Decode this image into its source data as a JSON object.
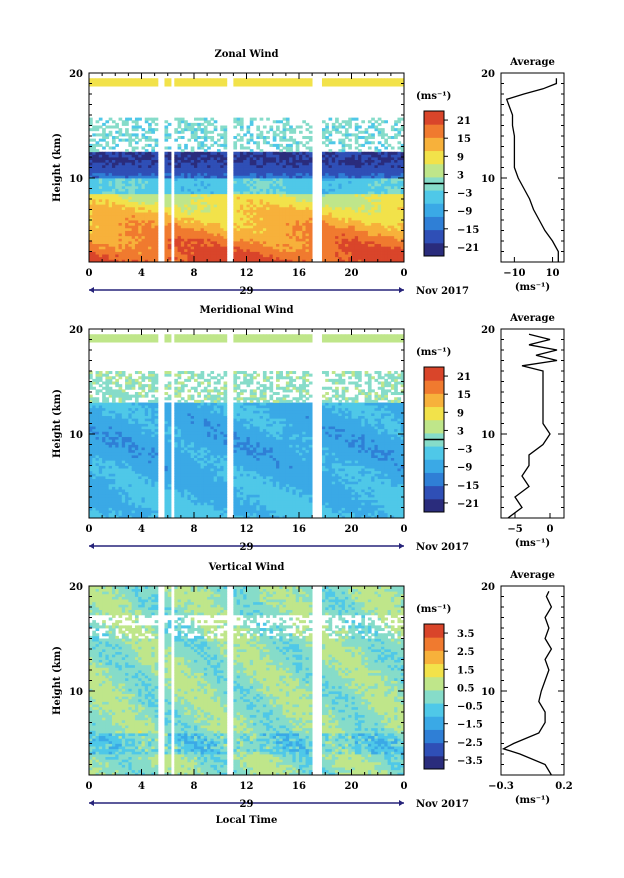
{
  "colors": {
    "wind_scale": [
      "#2a2c7c",
      "#2f4fb6",
      "#2f7fd6",
      "#3aa9e6",
      "#4fc8e8",
      "#86dcc9",
      "#bfe68a",
      "#f2e24a",
      "#f7b13b",
      "#f07a2f",
      "#d9452a"
    ]
  },
  "chart_data": [
    {
      "type": "heatmap",
      "title": "Zonal Wind",
      "xlabel": "",
      "ylabel": "Height (km)",
      "xticks": [
        "0",
        "4",
        "8",
        "12",
        "16",
        "20",
        "0"
      ],
      "yticks": [
        "20",
        "10"
      ],
      "xlim": [
        0,
        24
      ],
      "ylim": [
        2,
        20
      ],
      "date_label": "29",
      "month_label": "Nov 2017",
      "colorbar": {
        "unit": "(ms⁻¹)",
        "ticks": [
          "21",
          "15",
          "9",
          "3",
          "−3",
          "−9",
          "−15",
          "−21"
        ],
        "range": [
          -24,
          24
        ],
        "contour_marker_value": 0
      },
      "profile": {
        "title": "Average",
        "xlabel": "(ms⁻¹)",
        "xticks": [
          "−10",
          "10"
        ],
        "yticks": [
          "20",
          "10"
        ],
        "xlim": [
          -17,
          16
        ],
        "ylim": [
          2,
          20
        ],
        "points": [
          {
            "h": 2.0,
            "v": 13
          },
          {
            "h": 3.0,
            "v": 13
          },
          {
            "h": 4.0,
            "v": 10
          },
          {
            "h": 5.0,
            "v": 6
          },
          {
            "h": 6.0,
            "v": 3
          },
          {
            "h": 7.0,
            "v": 0
          },
          {
            "h": 8.0,
            "v": -2
          },
          {
            "h": 9.0,
            "v": -5
          },
          {
            "h": 10.0,
            "v": -8
          },
          {
            "h": 11.0,
            "v": -10
          },
          {
            "h": 12.0,
            "v": -10
          },
          {
            "h": 13.0,
            "v": -10
          },
          {
            "h": 14.0,
            "v": -10
          },
          {
            "h": 15.0,
            "v": -11
          },
          {
            "h": 16.0,
            "v": -11
          },
          {
            "h": 17.0,
            "v": -13
          },
          {
            "h": 17.5,
            "v": -14
          },
          {
            "h": 18.0,
            "v": -5
          },
          {
            "h": 18.5,
            "v": 5
          },
          {
            "h": 19.0,
            "v": 12
          },
          {
            "h": 19.5,
            "v": 12
          }
        ]
      }
    },
    {
      "type": "heatmap",
      "title": "Meridional Wind",
      "xlabel": "",
      "ylabel": "Height (km)",
      "xticks": [
        "0",
        "4",
        "8",
        "12",
        "16",
        "20",
        "0"
      ],
      "yticks": [
        "20",
        "10"
      ],
      "xlim": [
        0,
        24
      ],
      "ylim": [
        2,
        20
      ],
      "date_label": "29",
      "month_label": "Nov 2017",
      "colorbar": {
        "unit": "(ms⁻¹)",
        "ticks": [
          "21",
          "15",
          "9",
          "3",
          "−3",
          "−9",
          "−15",
          "−21"
        ],
        "range": [
          -24,
          24
        ],
        "contour_marker_value": 0
      },
      "profile": {
        "title": "Average",
        "xlabel": "(ms⁻¹)",
        "xticks": [
          "−5",
          "0"
        ],
        "yticks": [
          "20",
          "10"
        ],
        "xlim": [
          -7,
          2
        ],
        "ylim": [
          2,
          20
        ],
        "points": [
          {
            "h": 2.0,
            "v": -6
          },
          {
            "h": 3.0,
            "v": -4
          },
          {
            "h": 4.0,
            "v": -5
          },
          {
            "h": 5.0,
            "v": -3
          },
          {
            "h": 6.0,
            "v": -4
          },
          {
            "h": 7.0,
            "v": -3
          },
          {
            "h": 8.0,
            "v": -3
          },
          {
            "h": 9.0,
            "v": -1
          },
          {
            "h": 10.0,
            "v": 0
          },
          {
            "h": 11.0,
            "v": -1
          },
          {
            "h": 12.0,
            "v": -1
          },
          {
            "h": 13.0,
            "v": -1
          },
          {
            "h": 14.0,
            "v": -1
          },
          {
            "h": 15.0,
            "v": -1
          },
          {
            "h": 16.0,
            "v": -1
          },
          {
            "h": 16.5,
            "v": -4
          },
          {
            "h": 17.0,
            "v": 1
          },
          {
            "h": 17.5,
            "v": -2
          },
          {
            "h": 18.0,
            "v": 1
          },
          {
            "h": 18.5,
            "v": -3
          },
          {
            "h": 19.0,
            "v": 0
          },
          {
            "h": 19.5,
            "v": -3
          }
        ]
      }
    },
    {
      "type": "heatmap",
      "title": "Vertical Wind",
      "xlabel": "Local Time",
      "ylabel": "Height (km)",
      "xticks": [
        "0",
        "4",
        "8",
        "12",
        "16",
        "20",
        "0"
      ],
      "yticks": [
        "20",
        "10"
      ],
      "xlim": [
        0,
        24
      ],
      "ylim": [
        2,
        20
      ],
      "date_label": "29",
      "month_label": "Nov 2017",
      "colorbar": {
        "unit": "(ms⁻¹)",
        "ticks": [
          "3.5",
          "2.5",
          "1.5",
          "0.5",
          "−0.5",
          "−1.5",
          "−2.5",
          "−3.5"
        ],
        "range": [
          -4,
          4
        ]
      },
      "profile": {
        "title": "Average",
        "xlabel": "(ms⁻¹)",
        "xticks": [
          "−0.3",
          "0.2"
        ],
        "yticks": [
          "20",
          "10"
        ],
        "xlim": [
          -0.3,
          0.2
        ],
        "ylim": [
          2,
          20
        ],
        "points": [
          {
            "h": 2.0,
            "v": 0.1
          },
          {
            "h": 3.0,
            "v": 0.05
          },
          {
            "h": 4.0,
            "v": -0.15
          },
          {
            "h": 4.5,
            "v": -0.28
          },
          {
            "h": 5.0,
            "v": -0.2
          },
          {
            "h": 6.0,
            "v": 0.0
          },
          {
            "h": 7.0,
            "v": 0.05
          },
          {
            "h": 8.0,
            "v": 0.05
          },
          {
            "h": 9.0,
            "v": 0.0
          },
          {
            "h": 10.0,
            "v": 0.02
          },
          {
            "h": 11.0,
            "v": 0.05
          },
          {
            "h": 12.0,
            "v": 0.08
          },
          {
            "h": 13.0,
            "v": 0.05
          },
          {
            "h": 14.0,
            "v": 0.1
          },
          {
            "h": 15.0,
            "v": 0.05
          },
          {
            "h": 16.0,
            "v": 0.08
          },
          {
            "h": 17.0,
            "v": 0.05
          },
          {
            "h": 18.0,
            "v": 0.1
          },
          {
            "h": 19.0,
            "v": 0.06
          },
          {
            "h": 19.5,
            "v": 0.08
          }
        ]
      }
    }
  ]
}
